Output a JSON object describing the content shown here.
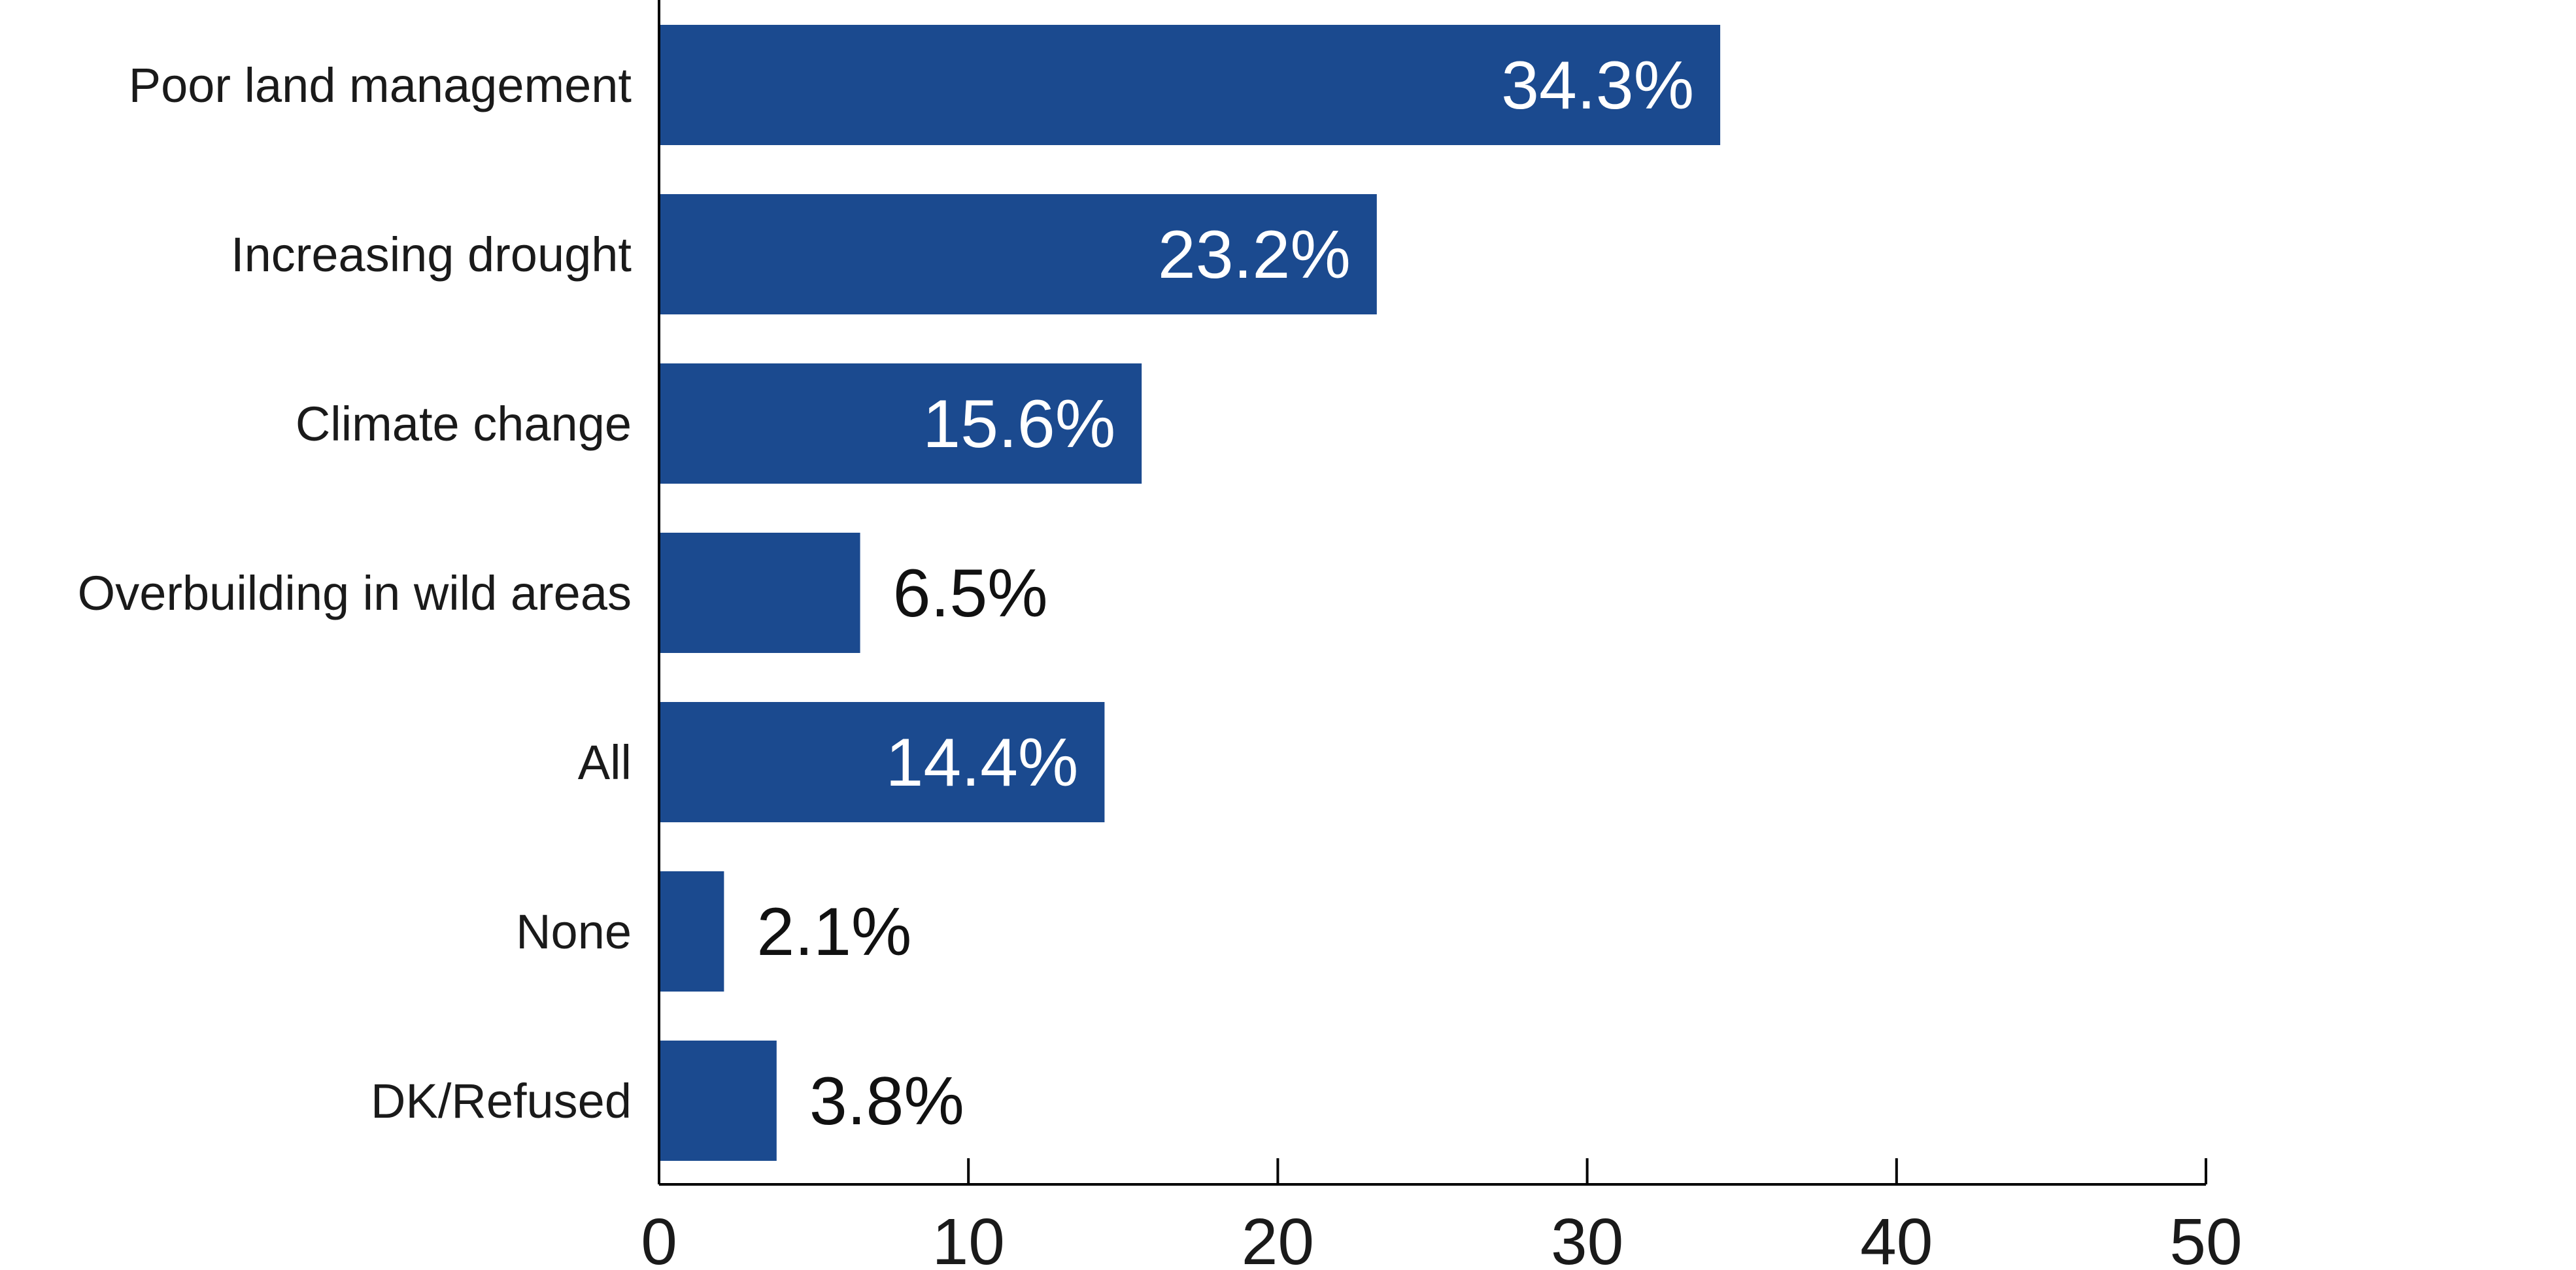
{
  "chart_data": {
    "type": "bar",
    "orientation": "horizontal",
    "categories": [
      "Poor land management",
      "Increasing drought",
      "Climate change",
      "Overbuilding in wild areas",
      "All",
      "None",
      "DK/Refused"
    ],
    "values": [
      34.3,
      23.2,
      15.6,
      6.5,
      14.4,
      2.1,
      3.8
    ],
    "value_labels": [
      "34.3%",
      "23.2%",
      "15.6%",
      "6.5%",
      "14.4%",
      "2.1%",
      "3.8%"
    ],
    "xlim": [
      0,
      50
    ],
    "x_ticks": [
      0,
      10,
      20,
      30,
      40,
      50
    ],
    "x_tick_labels": [
      "0",
      "10",
      "20",
      "30",
      "40",
      "50"
    ],
    "title": "",
    "xlabel": "",
    "ylabel": "",
    "grid": false,
    "legend": "none",
    "colors": {
      "bar": "#1b4a8f",
      "label_inside": "#ffffff",
      "label_outside": "#111111"
    }
  }
}
